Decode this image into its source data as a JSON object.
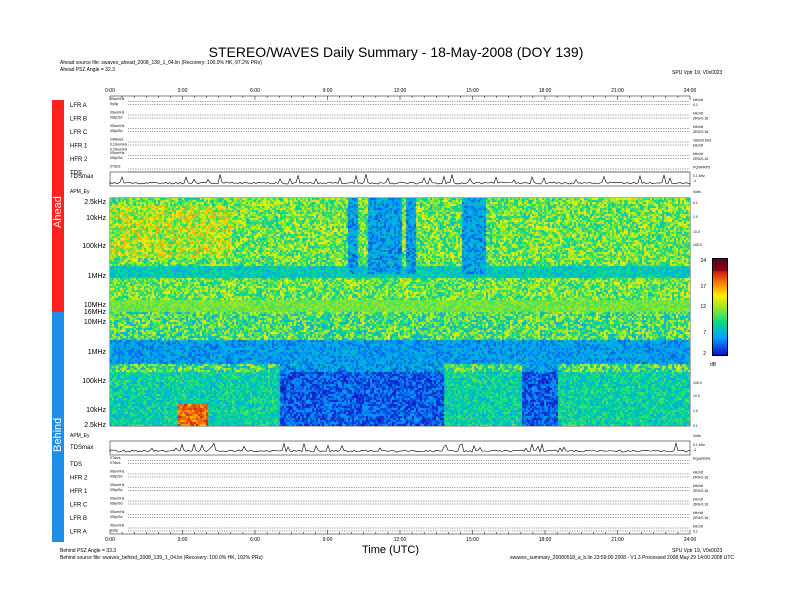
{
  "title": "STEREO/WAVES Daily Summary - 18-May-2008 (DOY 139)",
  "header": {
    "ahead_source": "Ahead source file: swaves_ahead_2008_139_1_04.lin (Recovery: 100.0% HK, 97.2% PRs)",
    "ahead_angle": "Ahead PSZ Angle = 32.3",
    "ahead_right": "SPU Vptr 19, V0x0023",
    "behind_angle": "Behind PSZ Angle = 33.3",
    "behind_source": "Behind source file: swaves_behind_2008_139_1_04.lin (Recovery: 100.0% HK, 102% PRs)",
    "behind_right_1": "SPU Vptr 19, V0x0023",
    "behind_right_2": "swaves_summary_20080518_a_b.lin 23:59:00 2008 - V1.3 Processed 2008 May 29 14:00 2008 UTC"
  },
  "side_labels": {
    "ahead": "Ahead",
    "behind": "Behind"
  },
  "colors": {
    "ahead": "#ff2020",
    "behind": "#1e8fe8"
  },
  "time_axis": {
    "label": "Time (UTC)",
    "ticks": [
      "0:00",
      "3:00",
      "6:00",
      "9:00",
      "12:00",
      "15:00",
      "18:00",
      "21:00",
      "24:00"
    ]
  },
  "top_rows": [
    {
      "label": "LFR A",
      "sub": [
        "0Sum/Hz",
        "SySp"
      ],
      "right": [
        "kHz/dt",
        "0.1"
      ]
    },
    {
      "label": "LFR B",
      "sub": [
        "0Sum/Hz",
        "0SIp/Sd"
      ],
      "right": [
        "kHz/dt",
        "ZRG/0.16"
      ]
    },
    {
      "label": "LFR C",
      "sub": [
        "0Sum/Hz",
        "0SIp/Sd"
      ],
      "right": [
        "kHz/dt",
        "ZRG/0.16"
      ]
    },
    {
      "label": "HFR 1",
      "sub": [
        "GWaves",
        "0.1Sum/Hz",
        "0.2Sum/Hz"
      ],
      "right": [
        "16Hz/0.6Hz",
        "kHz/dt"
      ]
    },
    {
      "label": "HFR 2",
      "sub": [
        "0Sum/Hz",
        "0SIp/Sd"
      ],
      "right": [
        "kHz/dt",
        "ZRG/0.16"
      ]
    },
    {
      "label": "TDS",
      "sub": [
        "0Tds/s"
      ],
      "right": [
        "PQ/0FRPS"
      ]
    }
  ],
  "bottom_rows": [
    {
      "label": "TDS",
      "sub": [
        "0Tds/s",
        "0Tds/s"
      ],
      "right": [
        "PQ/0FRPS"
      ]
    },
    {
      "label": "HFR 2",
      "sub": [
        "0Sum/Hz",
        "0SIp/Sd"
      ],
      "right": [
        "kHz/dt",
        "ZRG/0.16"
      ]
    },
    {
      "label": "HFR 1",
      "sub": [
        "0Sum/Hz",
        "0SIp/Sd"
      ],
      "right": [
        "kHz/dt",
        "ZRG/0.16"
      ]
    },
    {
      "label": "LFR C",
      "sub": [
        "0Sum/Hz",
        "0SIp/Sd"
      ],
      "right": [
        "kHz/dt",
        "ZRG/0.16"
      ]
    },
    {
      "label": "LFR B",
      "sub": [
        "0Sum/Hz",
        "0SIp/Sd"
      ],
      "right": [
        "kHz/dt",
        "ZRG/0.16"
      ]
    },
    {
      "label": "LFR A",
      "sub": [
        "0Sum/Hz",
        "SySp"
      ],
      "right": [
        "kHz/dt",
        "0.1"
      ]
    }
  ],
  "tdsmax_label": "TDSmax",
  "apm_label": "APM_Ey",
  "tdsmax_right": [
    "0.1 kHz",
    "-1"
  ],
  "apm_right": "Volts",
  "colorbar": {
    "label": "dB",
    "ticks": [
      "24",
      "17",
      "12",
      "7",
      "2"
    ]
  },
  "freq_axis": {
    "ahead": [
      "2.5kHz",
      "10kHz",
      "100kHz",
      "1MHz",
      "10MHz"
    ],
    "middle": "16MHz",
    "behind": [
      "10MHz",
      "1MHz",
      "100kHz",
      "10kHz",
      "2.5kHz"
    ]
  },
  "right_freq_ticks": {
    "ahead": [
      "0.1",
      "1.0",
      "10.0",
      "100.0"
    ],
    "behind": [
      "100.0",
      "10.0",
      "1.0",
      "0.1"
    ]
  },
  "chart_data": {
    "type": "heatmap",
    "title": "STEREO/WAVES Daily Summary - 18-May-2008 (DOY 139)",
    "xlabel": "Time (UTC)",
    "ylabel": "",
    "x_range_hours": [
      0,
      24
    ],
    "x_ticks": [
      "0:00",
      "3:00",
      "6:00",
      "9:00",
      "12:00",
      "15:00",
      "18:00",
      "21:00",
      "24:00"
    ],
    "ahead_freq_ticks": [
      "2.5kHz",
      "10kHz",
      "100kHz",
      "1MHz",
      "10MHz",
      "16MHz"
    ],
    "behind_freq_ticks": [
      "10MHz",
      "1MHz",
      "100kHz",
      "10kHz",
      "2.5kHz"
    ],
    "colorbar_db_range": [
      2,
      24
    ],
    "colorbar_ticks": [
      24,
      17,
      12,
      7,
      2
    ],
    "colorbar_units": "dB",
    "ahead_low_intensity_intervals_utc": [
      [
        9.8,
        10.2
      ],
      [
        10.6,
        12.0
      ],
      [
        12.2,
        12.6
      ],
      [
        14.5,
        15.5
      ]
    ],
    "behind_low_intensity_intervals_utc": [
      [
        7.0,
        13.8
      ],
      [
        17.0,
        18.5
      ]
    ],
    "behind_high_intensity_interval_utc": [
      2.8,
      4.0
    ]
  }
}
